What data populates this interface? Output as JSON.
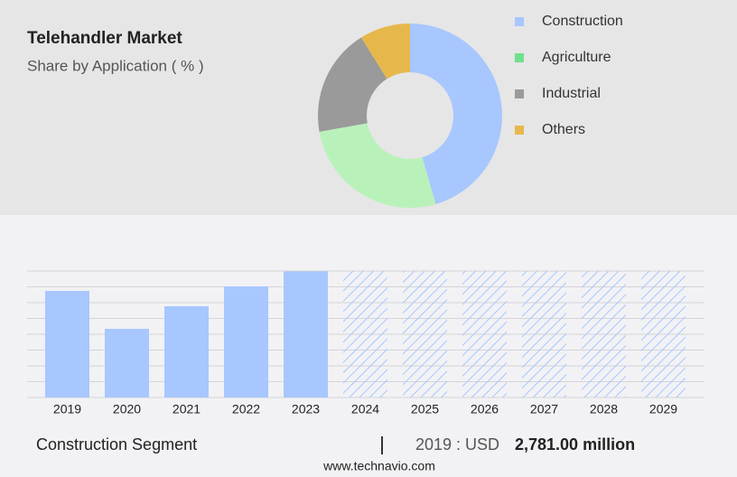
{
  "chart_data": [
    {
      "type": "donut",
      "title": "Telehandler Market",
      "subtitle": "Share by Application ( % )",
      "categories": [
        "Construction",
        "Agriculture",
        "Industrial",
        "Others"
      ],
      "values": [
        45.5,
        26.7,
        18.9,
        8.9
      ],
      "colors": [
        "#a7c7fe",
        "#b8f2ba",
        "#9a9a9a",
        "#e6b84c"
      ],
      "legend_colors": [
        "#a7c7fe",
        "#6ee08c",
        "#9a9a9a",
        "#e6b84c"
      ]
    },
    {
      "type": "bar",
      "categories": [
        "2019",
        "2020",
        "2021",
        "2022",
        "2023",
        "2024",
        "2025",
        "2026",
        "2027",
        "2028",
        "2029"
      ],
      "values": [
        2781,
        1791,
        2381,
        2899,
        3290,
        null,
        null,
        null,
        null,
        null,
        null
      ],
      "value_labels": [
        "2,781.00 million",
        null,
        null,
        null,
        null,
        null,
        null,
        null,
        null,
        null,
        null
      ],
      "color": "#a7c7fe",
      "ylim": [
        0,
        3300
      ],
      "yticks": [
        0,
        412.5,
        825,
        1237.5,
        1650,
        2062.5,
        2475,
        2887.5,
        3300
      ],
      "grid": true
    }
  ],
  "footer": {
    "segment": "Construction Segment",
    "year": "2019 : USD",
    "site": "www.technavio.com"
  }
}
